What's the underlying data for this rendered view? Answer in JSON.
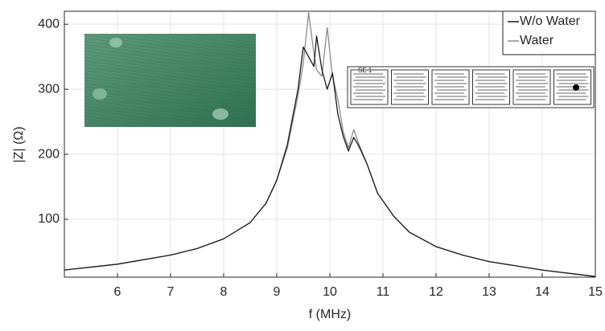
{
  "chart_data": {
    "type": "line",
    "x_label": "f (MHz)",
    "y_label": "|Z| (Ω)",
    "inset_label": "SE 1",
    "x": [
      5,
      6,
      7,
      7.5,
      8,
      8.5,
      8.8,
      9,
      9.2,
      9.4,
      9.5,
      9.6,
      9.7,
      9.75,
      9.85,
      9.95,
      10.05,
      10.15,
      10.25,
      10.35,
      10.45,
      10.55,
      10.7,
      10.9,
      11.2,
      11.5,
      12,
      12.5,
      13,
      14,
      15
    ],
    "series": [
      {
        "name": "W/o Water",
        "color": "#1a1a1a",
        "values": [
          22,
          31,
          45,
          55,
          70,
          95,
          125,
          160,
          215,
          300,
          365,
          350,
          335,
          382,
          330,
          300,
          325,
          262,
          228,
          205,
          226,
          212,
          185,
          140,
          105,
          80,
          58,
          45,
          35,
          22,
          12
        ]
      },
      {
        "name": "Water",
        "color": "#8c8c8c",
        "values": [
          22,
          31,
          45,
          55,
          70,
          95,
          125,
          160,
          210,
          290,
          340,
          418,
          355,
          330,
          320,
          395,
          320,
          285,
          235,
          210,
          238,
          215,
          185,
          140,
          105,
          80,
          58,
          45,
          35,
          22,
          12
        ]
      }
    ],
    "xlim": [
      5,
      15
    ],
    "xticks": [
      6,
      7,
      8,
      9,
      10,
      11,
      12,
      13,
      14,
      15
    ],
    "ylim": [
      11,
      420
    ],
    "yticks": [
      100,
      200,
      300,
      400
    ],
    "grid": true,
    "legend": "top-right"
  }
}
